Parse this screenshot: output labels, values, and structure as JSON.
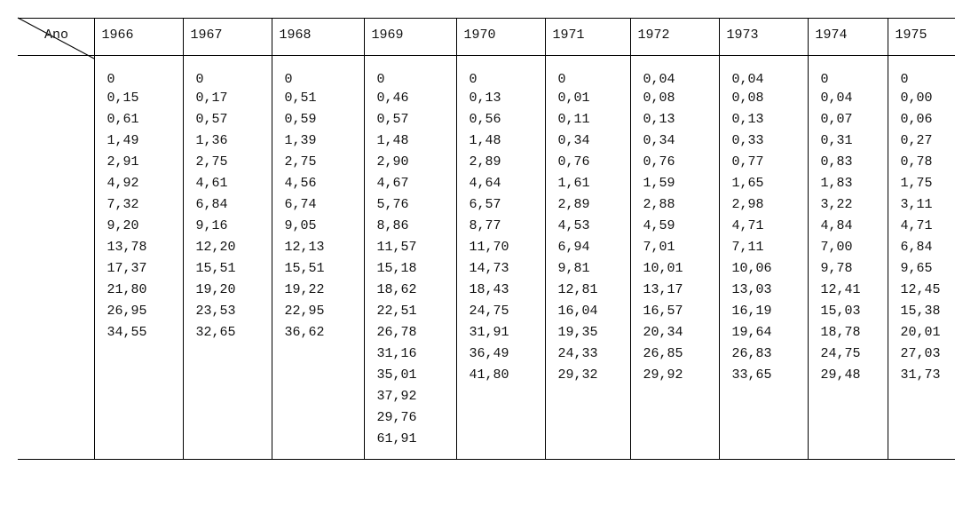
{
  "table": {
    "type": "table",
    "background_color": "#ffffff",
    "text_color": "#111111",
    "font_family": "Courier New",
    "font_size_pt": 11,
    "border_color": "#000000",
    "header_border_width": 1.5,
    "col_border_width": 1,
    "corner_label": "Ano",
    "columns": [
      "1966",
      "1967",
      "1968",
      "1969",
      "1970",
      "1971",
      "1972",
      "1973",
      "1974",
      "1975"
    ],
    "column_alignment": [
      "left",
      "left",
      "left",
      "left",
      "left",
      "left",
      "left",
      "left",
      "left",
      "left"
    ],
    "rows": [
      [
        "0",
        "0",
        "0",
        "0",
        "0",
        "0",
        "0,04",
        "0,04",
        "0",
        "0"
      ],
      [
        "0,15",
        "0,17",
        "0,51",
        "0,46",
        "0,13",
        "0,01",
        "0,08",
        "0,08",
        "0,04",
        "0,00"
      ],
      [
        "0,61",
        "0,57",
        "0,59",
        "0,57",
        "0,56",
        "0,11",
        "0,13",
        "0,13",
        "0,07",
        "0,06"
      ],
      [
        "1,49",
        "1,36",
        "1,39",
        "1,48",
        "1,48",
        "0,34",
        "0,34",
        "0,33",
        "0,31",
        "0,27"
      ],
      [
        "2,91",
        "2,75",
        "2,75",
        "2,90",
        "2,89",
        "0,76",
        "0,76",
        "0,77",
        "0,83",
        "0,78"
      ],
      [
        "4,92",
        "4,61",
        "4,56",
        "4,67",
        "4,64",
        "1,61",
        "1,59",
        "1,65",
        "1,83",
        "1,75"
      ],
      [
        "7,32",
        "6,84",
        "6,74",
        "5,76",
        "6,57",
        "2,89",
        "2,88",
        "2,98",
        "3,22",
        "3,11"
      ],
      [
        "9,20",
        "9,16",
        "9,05",
        "8,86",
        "8,77",
        "4,53",
        "4,59",
        "4,71",
        "4,84",
        "4,71"
      ],
      [
        "13,78",
        "12,20",
        "12,13",
        "11,57",
        "11,70",
        "6,94",
        "7,01",
        "7,11",
        "7,00",
        "6,84"
      ],
      [
        "17,37",
        "15,51",
        "15,51",
        "15,18",
        "14,73",
        "9,81",
        "10,01",
        "10,06",
        "9,78",
        "9,65"
      ],
      [
        "21,80",
        "19,20",
        "19,22",
        "18,62",
        "18,43",
        "12,81",
        "13,17",
        "13,03",
        "12,41",
        "12,45"
      ],
      [
        "26,95",
        "23,53",
        "22,95",
        "22,51",
        "24,75",
        "16,04",
        "16,57",
        "16,19",
        "15,03",
        "15,38"
      ],
      [
        "34,55",
        "32,65",
        "36,62",
        "26,78",
        "31,91",
        "19,35",
        "20,34",
        "19,64",
        "18,78",
        "20,01"
      ],
      [
        "",
        "",
        "",
        "31,16",
        "36,49",
        "24,33",
        "26,85",
        "26,83",
        "24,75",
        "27,03"
      ],
      [
        "",
        "",
        "",
        "35,01",
        "41,80",
        "29,32",
        "29,92",
        "33,65",
        "29,48",
        "31,73"
      ],
      [
        "",
        "",
        "",
        "37,92",
        "",
        "",
        "",
        "",
        "",
        ""
      ],
      [
        "",
        "",
        "",
        "29,76",
        "",
        "",
        "",
        "",
        "",
        ""
      ],
      [
        "",
        "",
        "",
        "61,91",
        "",
        "",
        "",
        "",
        "",
        ""
      ]
    ]
  }
}
